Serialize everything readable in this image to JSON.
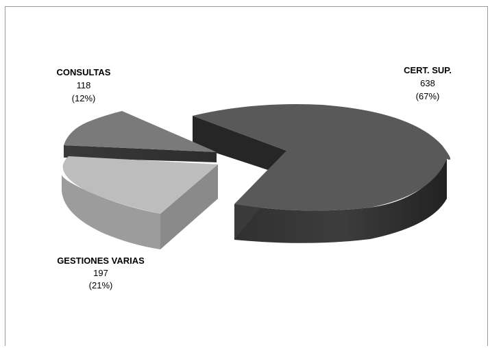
{
  "chart_data": {
    "type": "pie",
    "style": "3d-exploded",
    "title": "",
    "slices": [
      {
        "label": "CERT. SUP.",
        "value": 638,
        "percent": "(67%)",
        "color": "#595959"
      },
      {
        "label": "GESTIONES VARIAS",
        "value": 197,
        "percent": "(21%)",
        "color": "#bdbdbd"
      },
      {
        "label": "CONSULTAS",
        "value": 118,
        "percent": "(12%)",
        "color": "#7a7a7a"
      }
    ],
    "legend": "none"
  }
}
